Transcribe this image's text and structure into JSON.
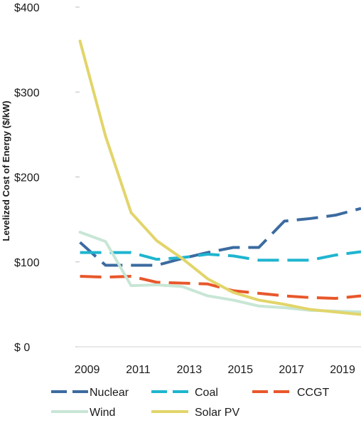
{
  "chart_data": {
    "type": "line",
    "ylabel": "Levelized Cost of Energy ($/kW)",
    "y_ticks": [
      {
        "value": 0,
        "label": "$ 0"
      },
      {
        "value": 100,
        "label": "$100"
      },
      {
        "value": 200,
        "label": "$200"
      },
      {
        "value": 300,
        "label": "$300"
      },
      {
        "value": 400,
        "label": "$400"
      }
    ],
    "x_ticks": [
      "2009",
      "2011",
      "2013",
      "2015",
      "2017",
      "2019"
    ],
    "ylim": [
      0,
      400
    ],
    "xlim": [
      2008.9,
      2020
    ],
    "x": [
      2009,
      2010,
      2011,
      2012,
      2013,
      2014,
      2015,
      2016,
      2017,
      2018,
      2019,
      2020
    ],
    "series": [
      {
        "name": "Nuclear",
        "color": "#3b6ba0",
        "dash": true,
        "values": [
          123,
          96,
          96,
          96,
          104,
          111,
          117,
          117,
          148,
          151,
          155,
          163
        ]
      },
      {
        "name": "Coal",
        "color": "#1fb5cf",
        "dash": true,
        "values": [
          111,
          111,
          111,
          103,
          105,
          109,
          107,
          102,
          102,
          102,
          108,
          112
        ]
      },
      {
        "name": "CCGT",
        "color": "#e8572b",
        "dash": true,
        "values": [
          83,
          82,
          83,
          76,
          75,
          74,
          66,
          63,
          60,
          58,
          57,
          60
        ]
      },
      {
        "name": "Wind",
        "color": "#c8e6d6",
        "dash": false,
        "values": [
          135,
          124,
          72,
          73,
          71,
          60,
          55,
          48,
          46,
          43,
          42,
          41
        ]
      },
      {
        "name": "Solar PV",
        "color": "#e2d56a",
        "dash": false,
        "values": [
          360,
          248,
          158,
          125,
          104,
          80,
          64,
          55,
          50,
          44,
          41,
          38
        ]
      }
    ],
    "grid": false,
    "legend": "bottom"
  }
}
